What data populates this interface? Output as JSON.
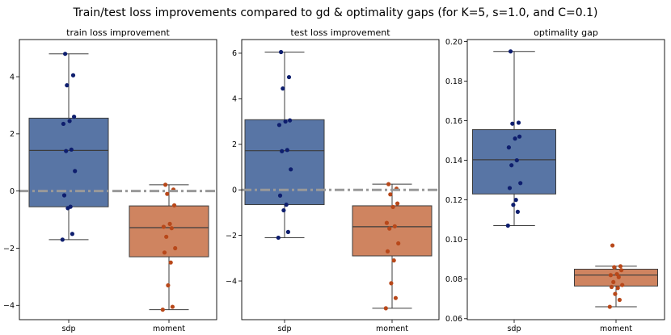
{
  "figure_title": "Train/test loss improvements compared to gd & optimality gaps (for K=5, s=1.0, and C=0.1)",
  "colors": {
    "sdp_box": "#5875a5",
    "moment_box": "#cf8460",
    "sdp_points": "#0e1e6e",
    "moment_points": "#b8481a",
    "reference_line": "#999999",
    "box_edge": "#3c3c3c"
  },
  "chart_data": [
    {
      "type": "box",
      "title": "train loss improvement",
      "categories": [
        "sdp",
        "moment"
      ],
      "ylim": [
        -4.5,
        5.3
      ],
      "yticks": [
        -4,
        -2,
        0,
        2,
        4
      ],
      "ytick_labels": [
        "−4",
        "−2",
        "0",
        "2",
        "4"
      ],
      "reference_line": 0,
      "boxes": [
        {
          "name": "sdp",
          "whisker_low": -1.7,
          "q1": -0.55,
          "median": 1.42,
          "q3": 2.55,
          "whisker_high": 4.8,
          "points": [
            4.8,
            4.05,
            3.7,
            2.6,
            2.45,
            2.35,
            1.45,
            1.4,
            0.7,
            -0.15,
            -0.55,
            -0.6,
            -1.5,
            -1.7
          ]
        },
        {
          "name": "moment",
          "whisker_low": -4.15,
          "q1": -2.3,
          "median": -1.28,
          "q3": -0.52,
          "whisker_high": 0.22,
          "points": [
            0.22,
            0.05,
            -0.1,
            -0.5,
            -1.15,
            -1.25,
            -1.3,
            -1.6,
            -2.0,
            -2.15,
            -2.5,
            -3.3,
            -4.05,
            -4.15
          ]
        }
      ]
    },
    {
      "type": "box",
      "title": "test loss improvement",
      "categories": [
        "sdp",
        "moment"
      ],
      "ylim": [
        -5.7,
        6.6
      ],
      "yticks": [
        -4,
        -2,
        0,
        2,
        4,
        6
      ],
      "ytick_labels": [
        "−4",
        "−2",
        "0",
        "2",
        "4",
        "6"
      ],
      "reference_line": 0,
      "boxes": [
        {
          "name": "sdp",
          "whisker_low": -2.1,
          "q1": -0.65,
          "median": 1.72,
          "q3": 3.08,
          "whisker_high": 6.05,
          "points": [
            6.05,
            4.95,
            4.45,
            3.05,
            3.0,
            2.85,
            1.75,
            1.7,
            0.9,
            -0.25,
            -0.65,
            -0.9,
            -1.85,
            -2.1
          ]
        },
        {
          "name": "moment",
          "whisker_low": -5.2,
          "q1": -2.9,
          "median": -1.62,
          "q3": -0.7,
          "whisker_high": 0.25,
          "points": [
            0.25,
            0.05,
            -0.2,
            -0.6,
            -0.75,
            -1.45,
            -1.6,
            -1.7,
            -2.35,
            -2.7,
            -3.1,
            -4.1,
            -4.75,
            -5.2
          ]
        }
      ]
    },
    {
      "type": "box",
      "title": "optimality gap",
      "categories": [
        "sdp",
        "moment"
      ],
      "ylim": [
        0.0595,
        0.201
      ],
      "yticks": [
        0.06,
        0.08,
        0.1,
        0.12,
        0.14,
        0.16,
        0.18,
        0.2
      ],
      "ytick_labels": [
        "0.06",
        "0.08",
        "0.10",
        "0.12",
        "0.14",
        "0.16",
        "0.18",
        "0.20"
      ],
      "reference_line": null,
      "boxes": [
        {
          "name": "sdp",
          "whisker_low": 0.107,
          "q1": 0.123,
          "median": 0.1403,
          "q3": 0.1555,
          "whisker_high": 0.195,
          "points": [
            0.195,
            0.159,
            0.1585,
            0.152,
            0.151,
            0.1465,
            0.14,
            0.1375,
            0.1285,
            0.126,
            0.12,
            0.1175,
            0.114,
            0.107
          ]
        },
        {
          "name": "moment",
          "whisker_low": 0.066,
          "q1": 0.0765,
          "median": 0.082,
          "q3": 0.085,
          "whisker_high": 0.0865,
          "points": [
            0.097,
            0.0865,
            0.086,
            0.0845,
            0.0825,
            0.082,
            0.081,
            0.0785,
            0.077,
            0.076,
            0.0755,
            0.0725,
            0.0695,
            0.066
          ]
        }
      ]
    }
  ]
}
